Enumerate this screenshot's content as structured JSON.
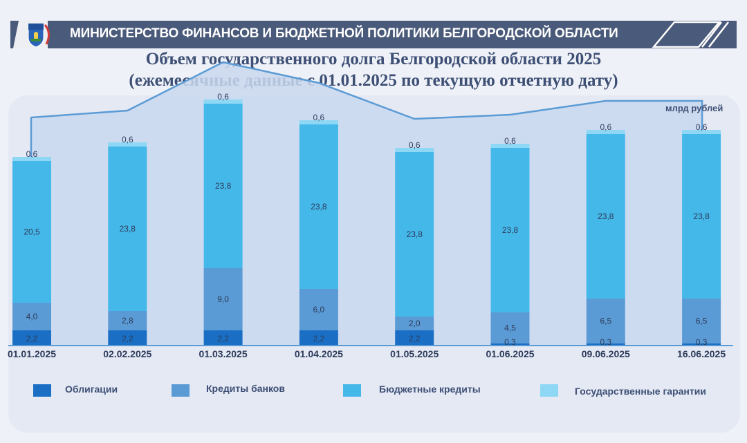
{
  "header": {
    "title": "МИНИСТЕРСТВО ФИНАНСОВ И БЮДЖЕТНОЙ ПОЛИТИКИ БЕЛГОРОДСКОЙ ОБЛАСТИ",
    "color": "#4a5a7a"
  },
  "page": {
    "title_line1": "Объем государственного долга Белгородской области 2025",
    "title_line2": "(ежемесячные данные с 01.01.2025 по текущую отчетную дату)"
  },
  "chart_data": {
    "type": "bar",
    "stacked": true,
    "unit_label": "млрд рублей",
    "categories": [
      "01.01.2025",
      "02.02.2025",
      "01.03.2025",
      "01.04.2025",
      "01.05.2025",
      "01.06.2025",
      "09.06.2025",
      "16.06.2025"
    ],
    "series": [
      {
        "name": "Облигации",
        "color": "#1a6fc4",
        "values": [
          2.2,
          2.2,
          2.2,
          2.2,
          2.2,
          0.3,
          0.3,
          0.3
        ],
        "labels": [
          "2,2",
          "2,2",
          "2,2",
          "2,2",
          "2,2",
          "0,3",
          "0,3",
          "0,3"
        ]
      },
      {
        "name": "Кредиты банков",
        "color": "#5b9bd5",
        "values": [
          4.0,
          2.8,
          9.0,
          6.0,
          2.0,
          4.5,
          6.5,
          6.5
        ],
        "labels": [
          "4,0",
          "2,8",
          "9,0",
          "6,0",
          "2,0",
          "4,5",
          "6,5",
          "6,5"
        ]
      },
      {
        "name": "Бюджетные кредиты",
        "color": "#45b8ea",
        "values": [
          20.5,
          23.8,
          23.8,
          23.8,
          23.8,
          23.8,
          23.8,
          23.8
        ],
        "labels": [
          "20,5",
          "23,8",
          "23,8",
          "23,8",
          "23,8",
          "23,8",
          "23,8",
          "23,8"
        ]
      },
      {
        "name": "Государственные гарантии",
        "color": "#8fd8f5",
        "values": [
          0.6,
          0.6,
          0.6,
          0.6,
          0.6,
          0.6,
          0.6,
          0.6
        ],
        "labels": [
          "0,6",
          "0,6",
          "0,6",
          "0,6",
          "0,6",
          "0,6",
          "0,6",
          "0,6"
        ]
      }
    ],
    "total_line": [
      33.0,
      34.0,
      41.0,
      38.0,
      32.8,
      33.4,
      35.4,
      35.4
    ],
    "ylim": [
      0,
      41.0
    ],
    "legend_position": "bottom",
    "grid": false,
    "line_color": "#5b9bd5",
    "area_color": "#c9d8ef"
  }
}
